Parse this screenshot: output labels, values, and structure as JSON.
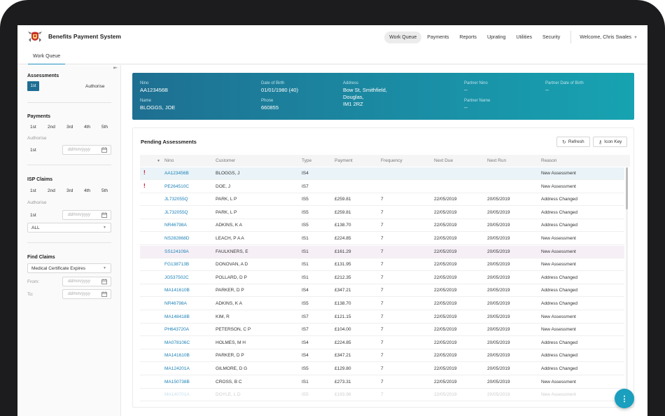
{
  "app": {
    "title": "Benefits Payment System"
  },
  "nav": {
    "items": [
      {
        "label": "Work Queue",
        "active": true
      },
      {
        "label": "Payments",
        "active": false
      },
      {
        "label": "Reports",
        "active": false
      },
      {
        "label": "Uprating",
        "active": false
      },
      {
        "label": "Utilities",
        "active": false
      },
      {
        "label": "Security",
        "active": false
      }
    ],
    "user": "Welcome, Chris Swales"
  },
  "tab": {
    "label": "Work Queue"
  },
  "sidebar": {
    "collapse_icon": "collapse-left-icon",
    "assessments": {
      "heading": "Assessments",
      "btn_1st": "1st",
      "authorise": "Authorise"
    },
    "payments": {
      "heading": "Payments",
      "periods": [
        "1st",
        "2nd",
        "3rd",
        "4th",
        "5th"
      ],
      "authorise_label": "Authorise",
      "authorise_value": "1st",
      "date_placeholder": "dd/mm/yyyy"
    },
    "isp_claims": {
      "heading": "ISP Claims",
      "periods": [
        "1st",
        "2nd",
        "3rd",
        "4th",
        "5th"
      ],
      "authorise_label": "Authorise",
      "authorise_value": "1st",
      "date_placeholder": "dd/mm/yyyy",
      "select_value": "ALL"
    },
    "find_claims": {
      "heading": "Find Claims",
      "select_value": "Medical Certificate Expires",
      "from_label": "From:",
      "to_label": "To:",
      "date_placeholder": "dd/mm/yyyy"
    }
  },
  "info": {
    "nino_label": "Nino",
    "nino": "AA123456B",
    "name_label": "Name",
    "name": "BLOGGS, JOE",
    "dob_label": "Date of Birth",
    "dob": "01/01/1980 (40)",
    "phone_label": "Phone",
    "phone": "660855",
    "address_label": "Address",
    "address": [
      "Bow St, Smithfield,",
      "Douglas,",
      "IM1 2RZ"
    ],
    "partner_nino_label": "Partner Nino",
    "partner_nino": "--",
    "partner_name_label": "Partner Name",
    "partner_name": "--",
    "partner_dob_label": "Partner Date of Birth",
    "partner_dob": "--"
  },
  "pending": {
    "title": "Pending Assessments",
    "refresh_label": "Refresh",
    "iconkey_label": "Icon Key",
    "columns": [
      "Nino",
      "Customer",
      "Type",
      "Payment",
      "Frequency",
      "Next Due",
      "Next Run",
      "Reason"
    ],
    "rows": [
      {
        "flag": "!",
        "nino": "AA123456B",
        "customer": "BLOGGS, J",
        "type": "IS4",
        "payment": "",
        "freq": "",
        "due": "",
        "run": "",
        "reason": "New Assessment"
      },
      {
        "flag": "!",
        "nino": "PE264510C",
        "customer": "DOE, J",
        "type": "IS7",
        "payment": "",
        "freq": "",
        "due": "",
        "run": "",
        "reason": "New Assessment"
      },
      {
        "flag": "",
        "nino": "JL732055Q",
        "customer": "PARK, L P",
        "type": "IS5",
        "payment": "£259.81",
        "freq": "7",
        "due": "22/05/2019",
        "run": "20/05/2019",
        "reason": "Address Changed"
      },
      {
        "flag": "",
        "nino": "JL732055Q",
        "customer": "PARK, L P",
        "type": "IS5",
        "payment": "£259.81",
        "freq": "7",
        "due": "22/05/2019",
        "run": "20/05/2019",
        "reason": "Address Changed"
      },
      {
        "flag": "",
        "nino": "NR46798A",
        "customer": "ADKINS, K A",
        "type": "IS5",
        "payment": "£138.70",
        "freq": "7",
        "due": "22/05/2019",
        "run": "20/05/2019",
        "reason": "Address Changed"
      },
      {
        "flag": "",
        "nino": "NS282868D",
        "customer": "LEACH, P A A",
        "type": "IS1",
        "payment": "£224.85",
        "freq": "7",
        "due": "22/05/2019",
        "run": "20/05/2019",
        "reason": "New Assessment"
      },
      {
        "flag": "",
        "nino": "SS124109A",
        "customer": "FAULKNERS, E",
        "type": "IS1",
        "payment": "£161.29",
        "freq": "7",
        "due": "22/05/2019",
        "run": "20/05/2019",
        "reason": "New Assessment"
      },
      {
        "flag": "",
        "nino": "FG138713B",
        "customer": "DONOVAN, A D",
        "type": "IS1",
        "payment": "£131.95",
        "freq": "7",
        "due": "22/05/2019",
        "run": "20/05/2019",
        "reason": "New Assessment"
      },
      {
        "flag": "",
        "nino": "JG537502C",
        "customer": "POLLARD, D P",
        "type": "IS1",
        "payment": "£212.35",
        "freq": "7",
        "due": "22/05/2019",
        "run": "20/05/2019",
        "reason": "Address Changed"
      },
      {
        "flag": "",
        "nino": "MA141610B",
        "customer": "PARKER, D P",
        "type": "IS4",
        "payment": "£347.21",
        "freq": "7",
        "due": "22/05/2019",
        "run": "20/05/2019",
        "reason": "Address Changed"
      },
      {
        "flag": "",
        "nino": "NR46798A",
        "customer": "ADKINS, K A",
        "type": "IS5",
        "payment": "£138.70",
        "freq": "7",
        "due": "22/05/2019",
        "run": "20/05/2019",
        "reason": "Address Changed"
      },
      {
        "flag": "",
        "nino": "MA148418B",
        "customer": "KIM, R",
        "type": "IS7",
        "payment": "£121.15",
        "freq": "7",
        "due": "22/05/2019",
        "run": "20/05/2019",
        "reason": "New Assessment"
      },
      {
        "flag": "",
        "nino": "PH643720A",
        "customer": "PETERSON, C P",
        "type": "IS7",
        "payment": "£104.00",
        "freq": "7",
        "due": "22/05/2019",
        "run": "20/05/2019",
        "reason": "New Assessment"
      },
      {
        "flag": "",
        "nino": "MA078106C",
        "customer": "HOLMES, M H",
        "type": "IS4",
        "payment": "£224.85",
        "freq": "7",
        "due": "22/05/2019",
        "run": "20/05/2019",
        "reason": "Address Changed"
      },
      {
        "flag": "",
        "nino": "MA141610B",
        "customer": "PARKER, D P",
        "type": "IS4",
        "payment": "£347.21",
        "freq": "7",
        "due": "22/05/2019",
        "run": "20/05/2019",
        "reason": "Address Changed"
      },
      {
        "flag": "",
        "nino": "MA124201A",
        "customer": "GILMORE, D G",
        "type": "IS5",
        "payment": "£129.80",
        "freq": "7",
        "due": "22/05/2019",
        "run": "20/05/2019",
        "reason": "Address Changed"
      },
      {
        "flag": "",
        "nino": "MA150738B",
        "customer": "CROSS, B C",
        "type": "IS1",
        "payment": "£273.31",
        "freq": "7",
        "due": "22/05/2019",
        "run": "20/05/2019",
        "reason": "New Assessment"
      },
      {
        "flag": "",
        "nino": "MA140701A",
        "customer": "DOYLE, L D",
        "type": "IS5",
        "payment": "£193.96",
        "freq": "7",
        "due": "22/05/2019",
        "run": "20/05/2019",
        "reason": "New Assessment"
      }
    ]
  },
  "fab": {
    "icon": "more-vertical-icon",
    "label": "⋮"
  }
}
